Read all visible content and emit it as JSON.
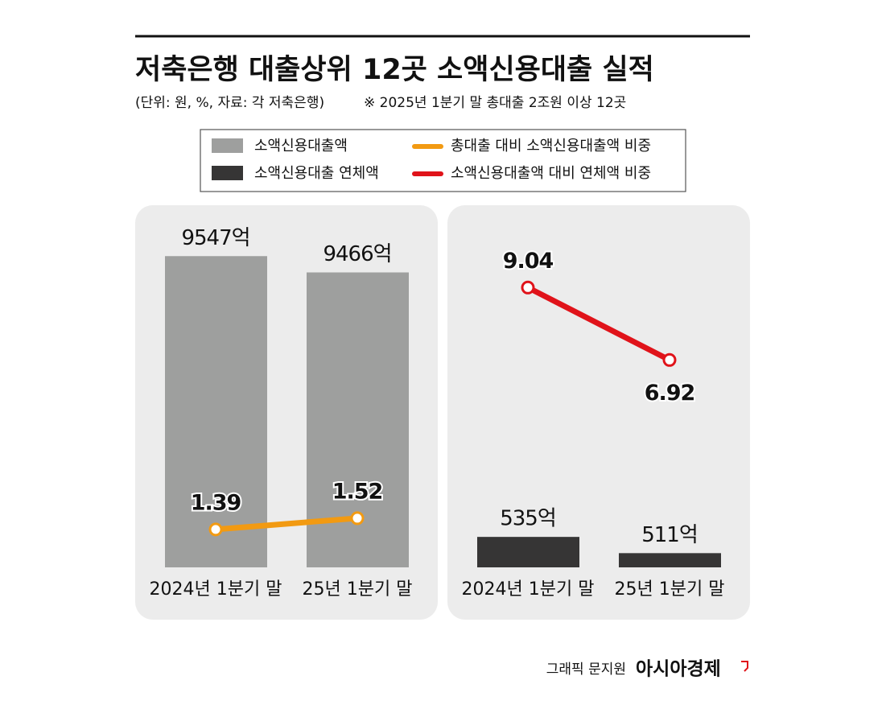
{
  "title": "저축은행 대출상위 12곳 소액신용대출 실적",
  "subtitle": "(단위: 원, %, 자료: 각 저축은행)",
  "note": "※ 2025년 1분기 말 총대출 2조원 이상 12곳",
  "credit": "그래픽 문지원",
  "brand": "아시아경제",
  "chart_data": [
    {
      "type": "bar",
      "categories": [
        "2024년 1분기 말",
        "25년 1분기 말"
      ],
      "ylim": [
        8000,
        9800
      ],
      "y2lim": [
        0.95,
        5.15
      ],
      "series": [
        {
          "name": "소액신용대출액",
          "color": "#9e9f9e",
          "values": [
            9547,
            9466
          ],
          "value_labels": [
            "9547억",
            "9466억"
          ]
        },
        {
          "name": "총대출 대비 소액신용대출액 비중",
          "type": "line",
          "axis": "y2",
          "color": "#f29a12",
          "values": [
            1.39,
            1.52
          ]
        }
      ]
    },
    {
      "type": "bar",
      "categories": [
        "2024년 1분기 말",
        "25년 1분기 말"
      ],
      "ylim": [
        490,
        1025
      ],
      "y2lim": [
        0.85,
        11.45
      ],
      "series": [
        {
          "name": "소액신용대출 연체액",
          "color": "#363535",
          "values": [
            535,
            511
          ],
          "value_labels": [
            "535억",
            "511억"
          ]
        },
        {
          "name": "소액신용대출액 대비 연체액 비중",
          "type": "line",
          "axis": "y2",
          "color": "#e0131a",
          "values": [
            9.04,
            6.92
          ]
        }
      ]
    }
  ]
}
